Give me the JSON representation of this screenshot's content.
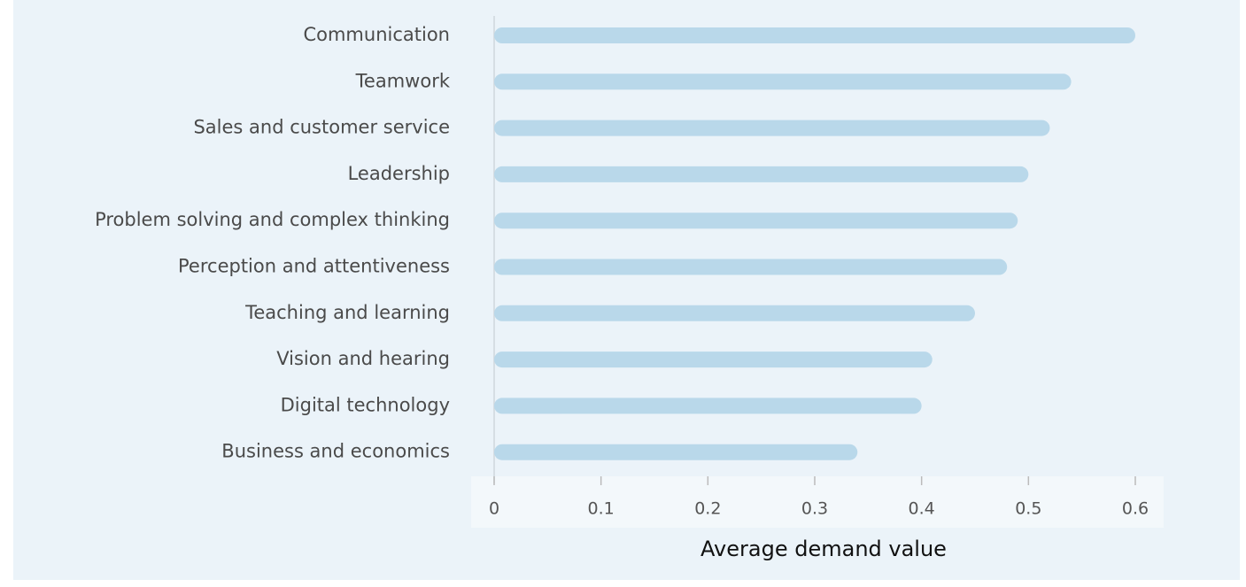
{
  "chart_data": {
    "type": "bar",
    "orientation": "horizontal",
    "xlabel": "Average demand value",
    "categories": [
      "Communication",
      "Teamwork",
      "Sales and customer service",
      "Leadership",
      "Problem solving and complex thinking",
      "Perception and attentiveness",
      "Teaching and learning",
      "Vision and hearing",
      "Digital technology",
      "Business and economics"
    ],
    "values": [
      0.6,
      0.54,
      0.52,
      0.5,
      0.49,
      0.48,
      0.45,
      0.41,
      0.4,
      0.34
    ],
    "color": "#b9d8ea",
    "xlim": [
      0,
      0.6
    ],
    "xticks": [
      0,
      0.1,
      0.2,
      0.3,
      0.4,
      0.5,
      0.6
    ],
    "grid": false
  }
}
